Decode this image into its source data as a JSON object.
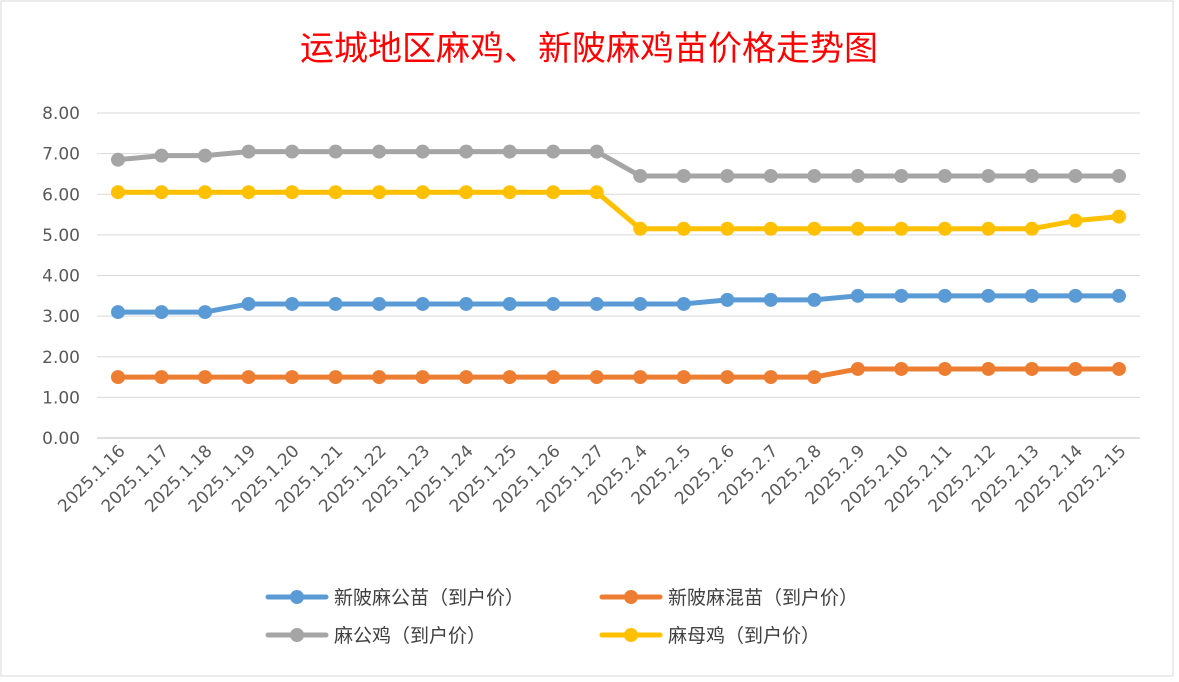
{
  "chart_data": {
    "type": "line",
    "title": "运城地区麻鸡、新陂麻鸡苗价格走势图",
    "xlabel": "",
    "ylabel": "",
    "ylim": [
      0,
      8
    ],
    "yticks": [
      "0.00",
      "1.00",
      "2.00",
      "3.00",
      "4.00",
      "5.00",
      "6.00",
      "7.00",
      "8.00"
    ],
    "grid": true,
    "legend_position": "bottom",
    "categories": [
      "2025.1.16",
      "2025.1.17",
      "2025.1.18",
      "2025.1.19",
      "2025.1.20",
      "2025.1.21",
      "2025.1.22",
      "2025.1.23",
      "2025.1.24",
      "2025.1.25",
      "2025.1.26",
      "2025.1.27",
      "2025.2.4",
      "2025.2.5",
      "2025.2.6",
      "2025.2.7",
      "2025.2.8",
      "2025.2.9",
      "2025.2.10",
      "2025.2.11",
      "2025.2.12",
      "2025.2.13",
      "2025.2.14",
      "2025.2.15"
    ],
    "series": [
      {
        "name": "新陂麻公苗（到户价）",
        "color": "#5b9bd5",
        "values": [
          3.1,
          3.1,
          3.1,
          3.3,
          3.3,
          3.3,
          3.3,
          3.3,
          3.3,
          3.3,
          3.3,
          3.3,
          3.3,
          3.3,
          3.4,
          3.4,
          3.4,
          3.5,
          3.5,
          3.5,
          3.5,
          3.5,
          3.5,
          3.5
        ]
      },
      {
        "name": "新陂麻混苗（到户价）",
        "color": "#ed7d31",
        "values": [
          1.5,
          1.5,
          1.5,
          1.5,
          1.5,
          1.5,
          1.5,
          1.5,
          1.5,
          1.5,
          1.5,
          1.5,
          1.5,
          1.5,
          1.5,
          1.5,
          1.5,
          1.7,
          1.7,
          1.7,
          1.7,
          1.7,
          1.7,
          1.7
        ]
      },
      {
        "name": "麻公鸡（到户价）",
        "color": "#a5a5a5",
        "values": [
          6.85,
          6.95,
          6.95,
          7.05,
          7.05,
          7.05,
          7.05,
          7.05,
          7.05,
          7.05,
          7.05,
          7.05,
          6.45,
          6.45,
          6.45,
          6.45,
          6.45,
          6.45,
          6.45,
          6.45,
          6.45,
          6.45,
          6.45,
          6.45
        ]
      },
      {
        "name": "麻母鸡（到户价）",
        "color": "#ffc000",
        "values": [
          6.05,
          6.05,
          6.05,
          6.05,
          6.05,
          6.05,
          6.05,
          6.05,
          6.05,
          6.05,
          6.05,
          6.05,
          5.15,
          5.15,
          5.15,
          5.15,
          5.15,
          5.15,
          5.15,
          5.15,
          5.15,
          5.15,
          5.35,
          5.45
        ]
      }
    ]
  }
}
